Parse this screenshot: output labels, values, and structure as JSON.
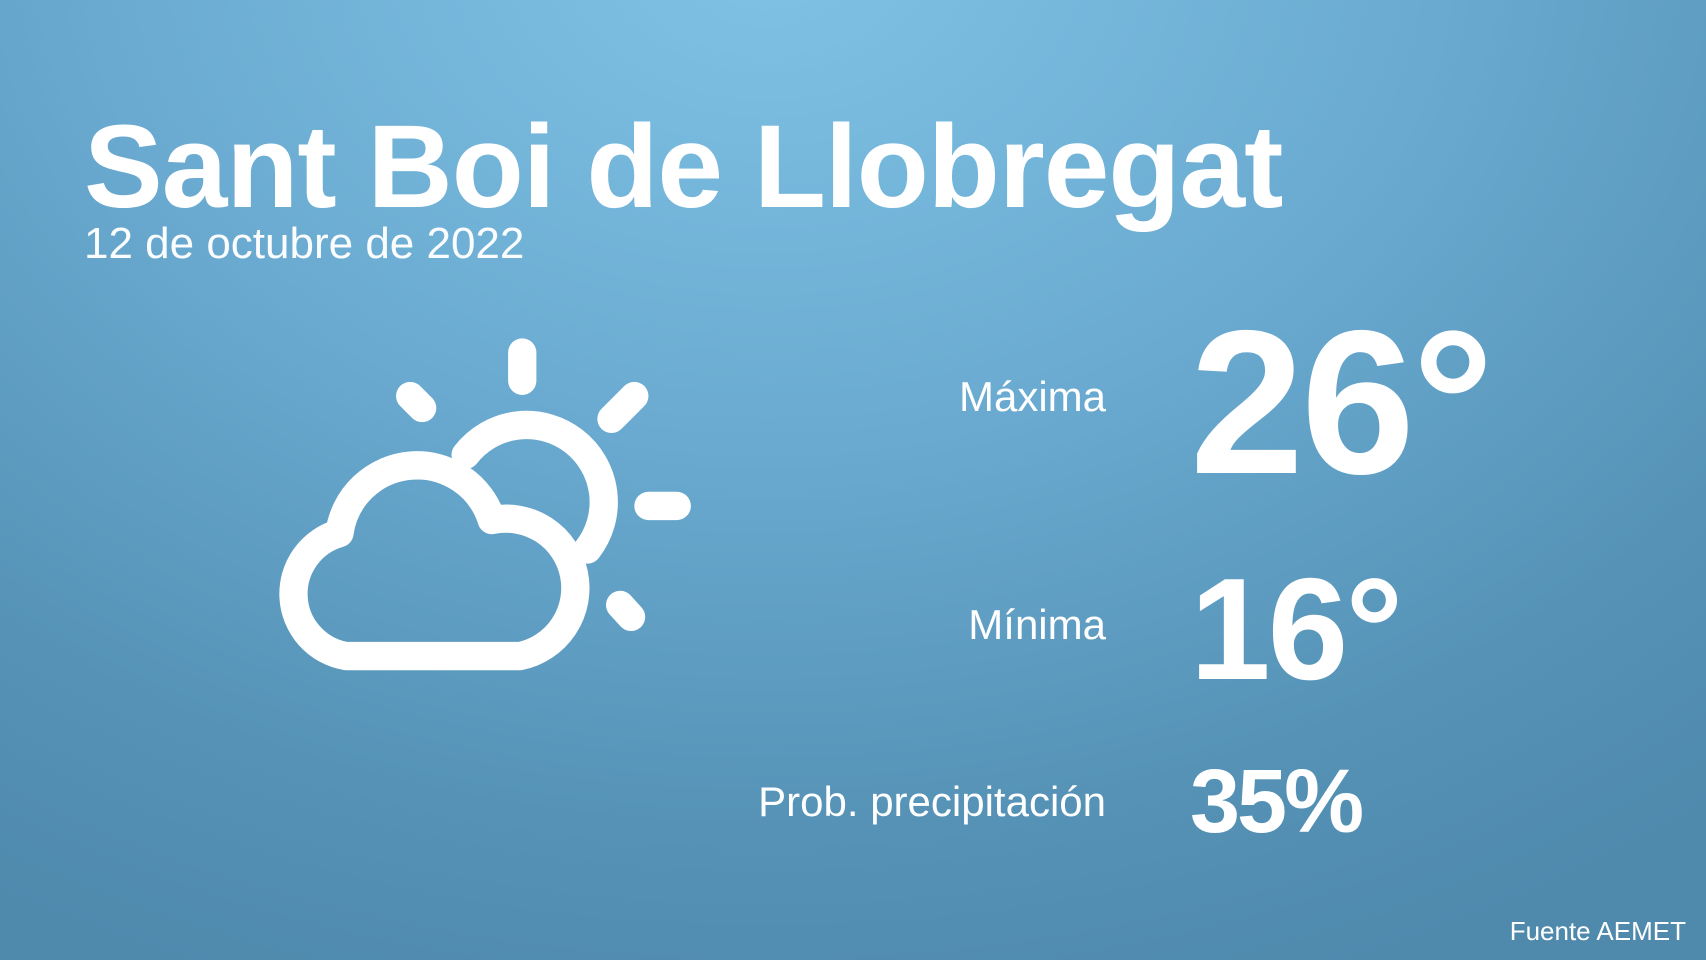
{
  "location": "Sant Boi de Llobregat",
  "date": "12 de octubre de 2022",
  "weather_icon": "partly-cloudy-icon",
  "max": {
    "label": "Máxima",
    "value": "26°"
  },
  "min": {
    "label": "Mínima",
    "value": "16°"
  },
  "precipitation": {
    "label": "Prob. precipitación",
    "value": "35%"
  },
  "source": "Fuente AEMET",
  "colors": {
    "background_top": "#80c2e6",
    "background_bottom": "#4f8aad",
    "text": "#ffffff"
  }
}
